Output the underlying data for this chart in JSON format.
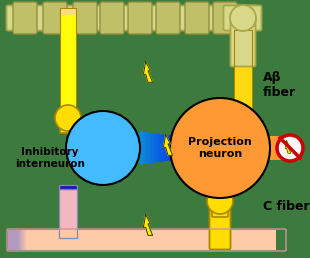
{
  "bg_color": "#3d7a3d",
  "ab_fiber_label": "Aβ\nfiber",
  "c_fiber_label": "C fiber",
  "inhibitory_label": "Inhibitory\ninterneuron",
  "projection_label": "Projection\nneuron",
  "pipe_fill": "#d8d88a",
  "pipe_edge": "#a8a848",
  "connector_fill": "#c0c068",
  "connector_edge": "#909040",
  "yellow_synapse": "#ffdd00",
  "yellow_synapse_edge": "#aa8800",
  "ab_pipe_top": "#ffffaa",
  "ab_pipe_bottom": "#ffee44",
  "inhibitory_color": "#44bbff",
  "inhibitory_dark": "#1133cc",
  "projection_color": "#ff9933",
  "axon_light": "#66ccff",
  "axon_dark": "#1133cc",
  "pink_pipe": "#ffbbbb",
  "pink_pipe_edge": "#dd9999",
  "blue_pipe": "#3355cc",
  "lightning_yellow": "#ffee00",
  "lightning_dark": "#333300",
  "no_signal_red": "#cc0000",
  "figsize": [
    3.1,
    2.58
  ],
  "dpi": 100
}
